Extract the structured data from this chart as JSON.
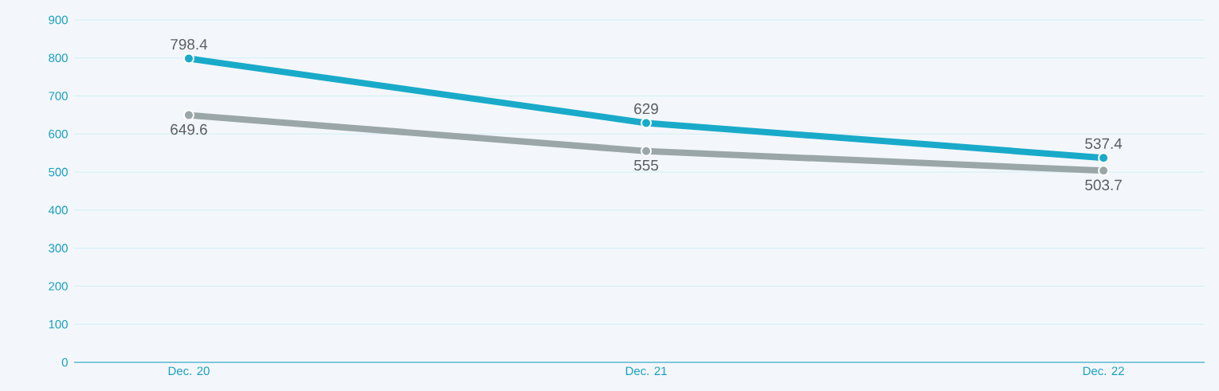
{
  "chart_data": {
    "type": "line",
    "categories": [
      "Dec. 20",
      "Dec. 21",
      "Dec. 22"
    ],
    "series": [
      {
        "color": "#1aaac9",
        "values": [
          798.4,
          629,
          537.4
        ],
        "value_labels": [
          "798.4",
          "629",
          "537.4"
        ]
      },
      {
        "color": "#9ba6a9",
        "values": [
          649.6,
          555,
          503.7
        ],
        "value_labels": [
          "649.6",
          "555",
          "503.7"
        ]
      }
    ],
    "ylim": [
      0,
      900
    ],
    "yticks": [
      0,
      100,
      200,
      300,
      400,
      500,
      600,
      700,
      800,
      900
    ],
    "grid": "y",
    "marker": "circle",
    "line_style": "solid"
  }
}
